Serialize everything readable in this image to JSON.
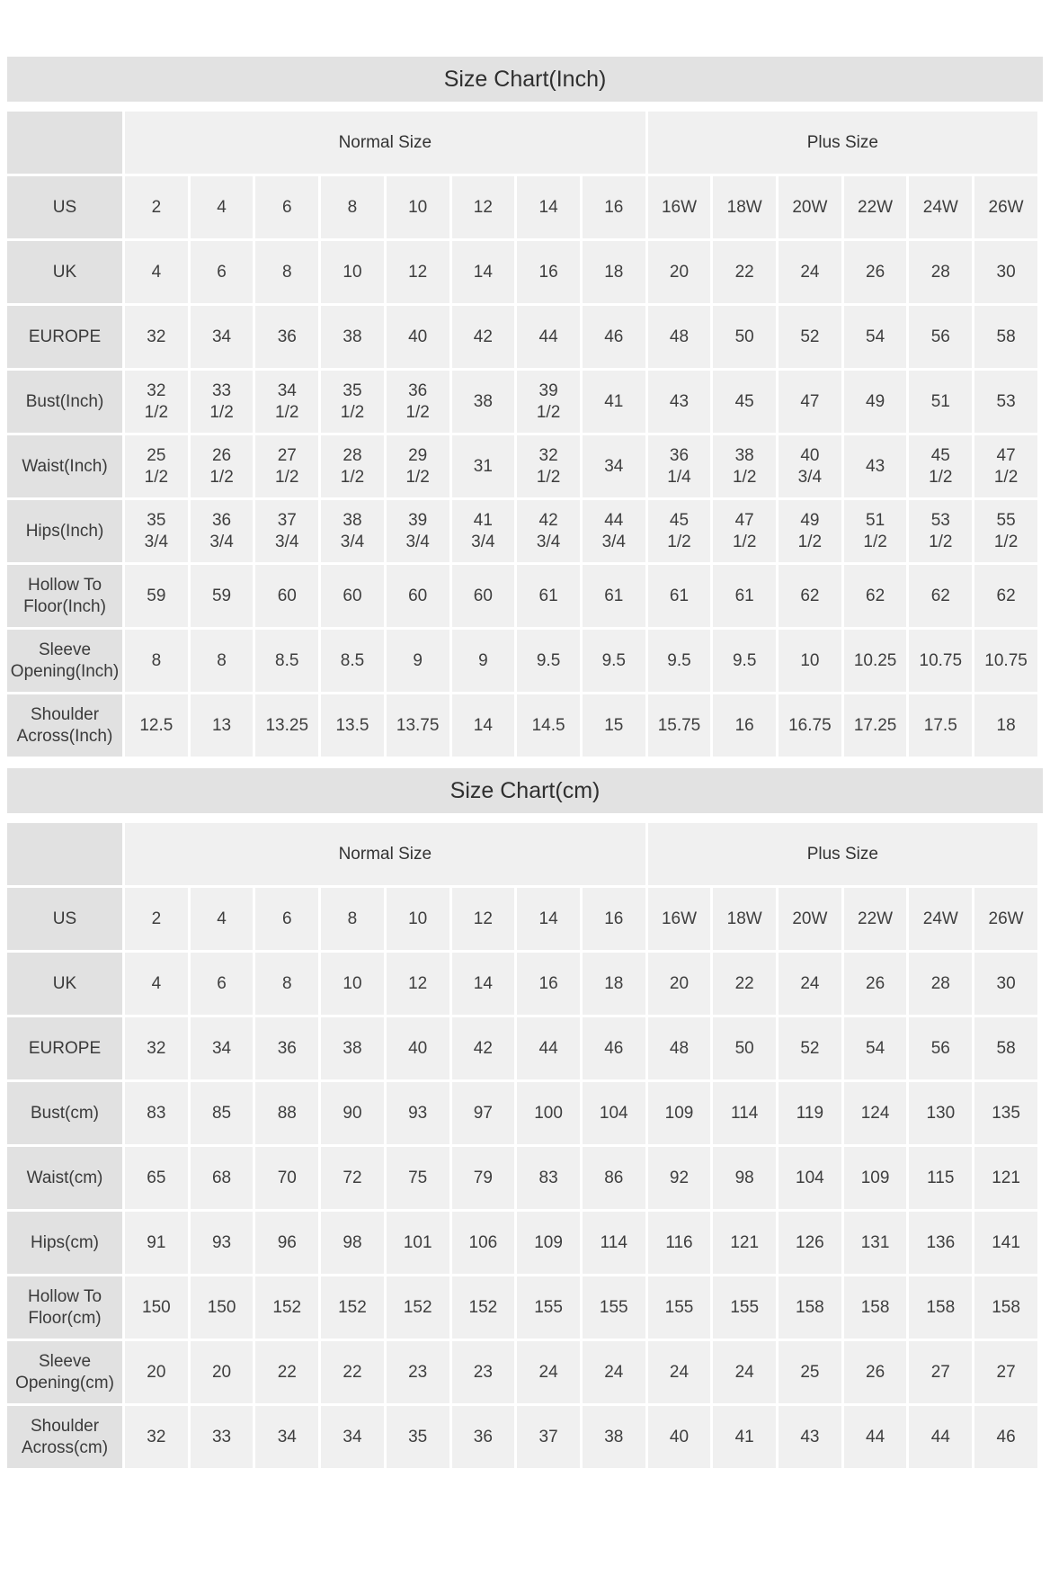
{
  "colors": {
    "page_bg": "#ffffff",
    "title_bar_bg": "#e2e2e2",
    "row_header_bg": "#e1e1e1",
    "data_cell_bg": "#f0f0f0",
    "text": "#3e3e3e"
  },
  "chart_data": [
    {
      "type": "table",
      "title": "Size Chart(Inch)",
      "group_headers": [
        {
          "label": "Normal Size",
          "span": 8
        },
        {
          "label": "Plus Size",
          "span": 6
        }
      ],
      "rows": [
        {
          "label": "US",
          "values": [
            "2",
            "4",
            "6",
            "8",
            "10",
            "12",
            "14",
            "16",
            "16W",
            "18W",
            "20W",
            "22W",
            "24W",
            "26W"
          ]
        },
        {
          "label": "UK",
          "values": [
            4,
            6,
            8,
            10,
            12,
            14,
            16,
            18,
            20,
            22,
            24,
            26,
            28,
            30
          ]
        },
        {
          "label": "EUROPE",
          "values": [
            32,
            34,
            36,
            38,
            40,
            42,
            44,
            46,
            48,
            50,
            52,
            54,
            56,
            58
          ]
        },
        {
          "label": "Bust(Inch)",
          "values": [
            "32 1/2",
            "33 1/2",
            "34 1/2",
            "35 1/2",
            "36 1/2",
            "38",
            "39 1/2",
            "41",
            "43",
            "45",
            "47",
            "49",
            "51",
            "53"
          ]
        },
        {
          "label": "Waist(Inch)",
          "values": [
            "25 1/2",
            "26 1/2",
            "27 1/2",
            "28 1/2",
            "29 1/2",
            "31",
            "32 1/2",
            "34",
            "36 1/4",
            "38 1/2",
            "40 3/4",
            "43",
            "45 1/2",
            "47 1/2"
          ]
        },
        {
          "label": "Hips(Inch)",
          "values": [
            "35 3/4",
            "36 3/4",
            "37 3/4",
            "38 3/4",
            "39 3/4",
            "41 3/4",
            "42 3/4",
            "44 3/4",
            "45 1/2",
            "47 1/2",
            "49 1/2",
            "51 1/2",
            "53 1/2",
            "55 1/2"
          ]
        },
        {
          "label": "Hollow To Floor(Inch)",
          "values": [
            59,
            59,
            60,
            60,
            60,
            60,
            61,
            61,
            61,
            61,
            62,
            62,
            62,
            62
          ]
        },
        {
          "label": "Sleeve Opening(Inch)",
          "values": [
            8,
            8,
            8.5,
            8.5,
            9,
            9,
            9.5,
            9.5,
            9.5,
            9.5,
            10,
            10.25,
            10.75,
            10.75
          ]
        },
        {
          "label": "Shoulder Across(Inch)",
          "values": [
            12.5,
            13,
            13.25,
            13.5,
            13.75,
            14,
            14.5,
            15,
            15.75,
            16,
            16.75,
            17.25,
            17.5,
            18
          ]
        }
      ]
    },
    {
      "type": "table",
      "title": "Size Chart(cm)",
      "group_headers": [
        {
          "label": "Normal Size",
          "span": 8
        },
        {
          "label": "Plus Size",
          "span": 6
        }
      ],
      "rows": [
        {
          "label": "US",
          "values": [
            "2",
            "4",
            "6",
            "8",
            "10",
            "12",
            "14",
            "16",
            "16W",
            "18W",
            "20W",
            "22W",
            "24W",
            "26W"
          ]
        },
        {
          "label": "UK",
          "values": [
            4,
            6,
            8,
            10,
            12,
            14,
            16,
            18,
            20,
            22,
            24,
            26,
            28,
            30
          ]
        },
        {
          "label": "EUROPE",
          "values": [
            32,
            34,
            36,
            38,
            40,
            42,
            44,
            46,
            48,
            50,
            52,
            54,
            56,
            58
          ]
        },
        {
          "label": "Bust(cm)",
          "values": [
            83,
            85,
            88,
            90,
            93,
            97,
            100,
            104,
            109,
            114,
            119,
            124,
            130,
            135
          ]
        },
        {
          "label": "Waist(cm)",
          "values": [
            65,
            68,
            70,
            72,
            75,
            79,
            83,
            86,
            92,
            98,
            104,
            109,
            115,
            121
          ]
        },
        {
          "label": "Hips(cm)",
          "values": [
            91,
            93,
            96,
            98,
            101,
            106,
            109,
            114,
            116,
            121,
            126,
            131,
            136,
            141
          ]
        },
        {
          "label": "Hollow To Floor(cm)",
          "values": [
            150,
            150,
            152,
            152,
            152,
            152,
            155,
            155,
            155,
            155,
            158,
            158,
            158,
            158
          ]
        },
        {
          "label": "Sleeve Opening(cm)",
          "values": [
            20,
            20,
            22,
            22,
            23,
            23,
            24,
            24,
            24,
            24,
            25,
            26,
            27,
            27
          ]
        },
        {
          "label": "Shoulder Across(cm)",
          "values": [
            32,
            33,
            34,
            34,
            35,
            36,
            37,
            38,
            40,
            41,
            43,
            44,
            44,
            46
          ]
        }
      ]
    }
  ]
}
